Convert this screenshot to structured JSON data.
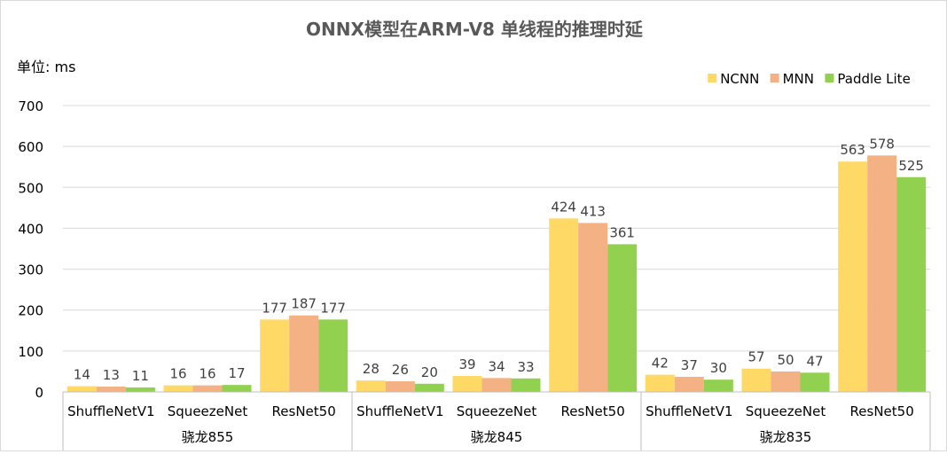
{
  "chart_data": {
    "type": "bar",
    "title": "ONNX模型在ARM-V8 单线程的推理时延",
    "ylabel": "单位: ms",
    "ylim": [
      0,
      700
    ],
    "yticks": [
      0,
      100,
      200,
      300,
      400,
      500,
      600,
      700
    ],
    "grid": true,
    "legend_position": "top-right",
    "groups": [
      {
        "label": "骁龙855",
        "categories": [
          "ShuffleNetV1",
          "SqueezeNet",
          "ResNet50"
        ]
      },
      {
        "label": "骁龙845",
        "categories": [
          "ShuffleNetV1",
          "SqueezeNet",
          "ResNet50"
        ]
      },
      {
        "label": "骁龙835",
        "categories": [
          "ShuffleNetV1",
          "SqueezeNet",
          "ResNet50"
        ]
      }
    ],
    "series": [
      {
        "name": "NCNN",
        "color": "#FFD966",
        "values": [
          14,
          16,
          177,
          28,
          39,
          424,
          42,
          57,
          563
        ]
      },
      {
        "name": "MNN",
        "color": "#F4B183",
        "values": [
          13,
          16,
          187,
          26,
          34,
          413,
          37,
          50,
          578
        ]
      },
      {
        "name": "Paddle Lite",
        "color": "#92D050",
        "values": [
          11,
          17,
          177,
          20,
          33,
          361,
          30,
          47,
          525
        ]
      }
    ]
  }
}
